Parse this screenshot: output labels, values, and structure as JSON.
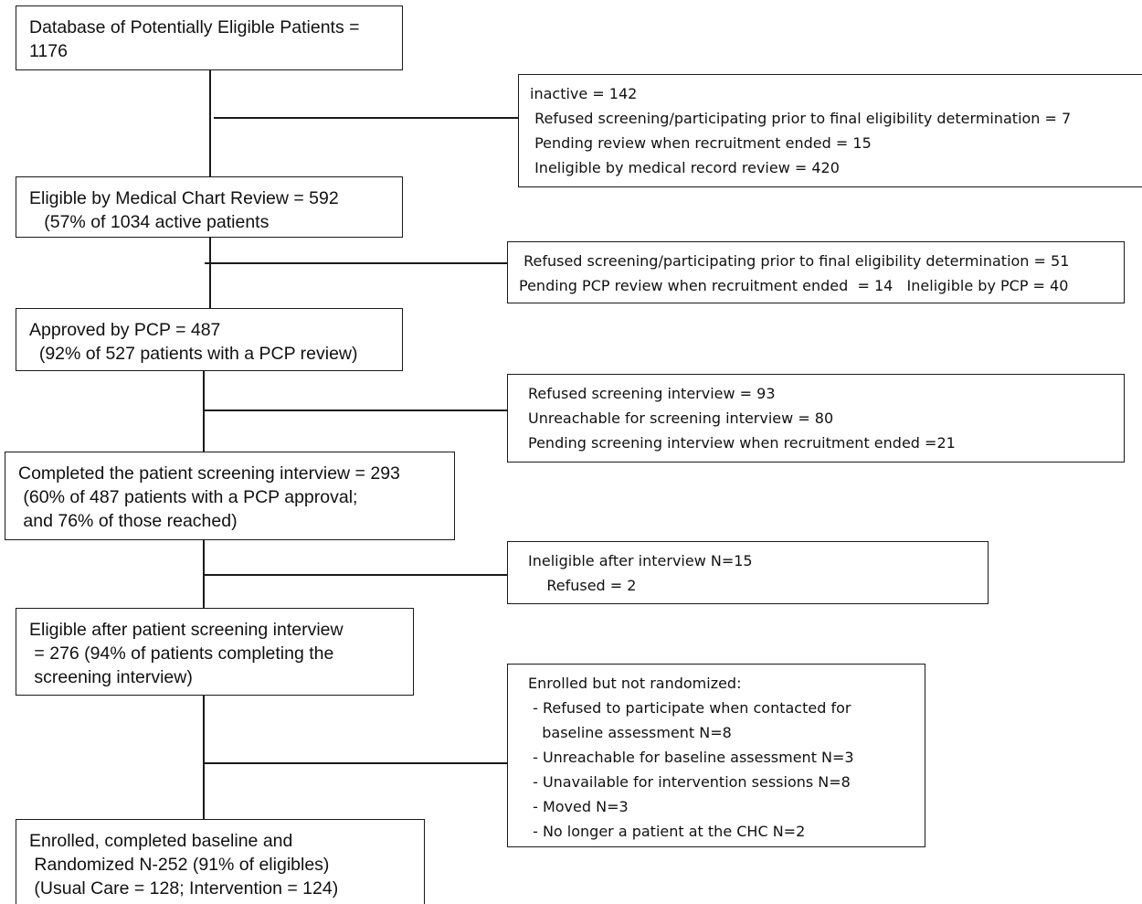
{
  "main_boxes": [
    {
      "id": "database",
      "lines": [
        "Database of Potentially Eligible Patients =",
        "1176"
      ]
    },
    {
      "id": "eligible-chart-review",
      "lines": [
        "Eligible by Medical Chart Review = 592",
        "   (57% of 1034 active patients"
      ]
    },
    {
      "id": "approved-pcp",
      "lines": [
        "Approved by PCP = 487",
        "  (92% of 527 patients with a PCP review)"
      ]
    },
    {
      "id": "completed-screening",
      "lines": [
        "Completed the patient screening interview = 293",
        " (60% of 487 patients with a PCP approval;",
        " and 76% of those reached)"
      ]
    },
    {
      "id": "eligible-after-screening",
      "lines": [
        "Eligible after patient screening interview",
        " = 276 (94% of patients completing the",
        " screening interview)"
      ]
    },
    {
      "id": "enrolled-randomized",
      "lines": [
        "Enrolled, completed baseline and",
        " Randomized N-252 (91% of eligibles)",
        " (Usual Care = 128; Intervention = 124)"
      ]
    }
  ],
  "side_boxes": [
    {
      "id": "exclusion-1",
      "lines": [
        "inactive = 142",
        " Refused screening/participating prior to final eligibility determination = 7",
        " Pending review when recruitment ended = 15",
        " Ineligible by medical record review = 420"
      ]
    },
    {
      "id": "exclusion-2",
      "lines": [
        " Refused screening/participating prior to final eligibility determination = 51",
        "Pending PCP review when recruitment ended  = 14   Ineligible by PCP = 40"
      ]
    },
    {
      "id": "exclusion-3",
      "lines": [
        "Refused screening interview = 93",
        "Unreachable for screening interview = 80",
        "Pending screening interview when recruitment ended =21"
      ]
    },
    {
      "id": "exclusion-4",
      "lines": [
        "Ineligible after interview N=15",
        "    Refused = 2"
      ]
    },
    {
      "id": "exclusion-5",
      "lines": [
        "Enrolled but not randomized:",
        " - Refused to participate when contacted for",
        "   baseline assessment N=8",
        " - Unreachable for baseline assessment N=3",
        " - Unavailable for intervention sessions N=8",
        " - Moved N=3",
        " - No longer a patient at the CHC N=2"
      ]
    }
  ]
}
